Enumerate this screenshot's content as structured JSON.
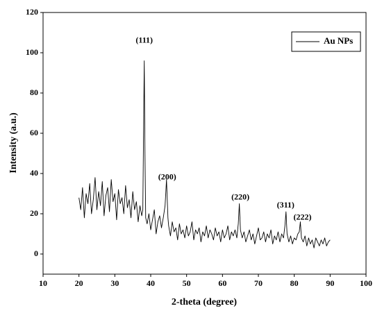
{
  "chart_data": {
    "type": "line",
    "x_label": "2-theta (degree)",
    "y_label": "Intensity (a.u.)",
    "xlim": [
      10,
      100
    ],
    "xticks": [
      10,
      20,
      30,
      40,
      50,
      60,
      70,
      80,
      90,
      100
    ],
    "ylim": [
      -10,
      120
    ],
    "yticks": [
      0,
      20,
      40,
      60,
      80,
      100,
      120
    ],
    "grid": false,
    "legend": "top-right",
    "annotations": [
      {
        "text": "(111)",
        "x": 38.2,
        "y": 106
      },
      {
        "text": "(200)",
        "x": 44.6,
        "y": 38
      },
      {
        "text": "(220)",
        "x": 65,
        "y": 28
      },
      {
        "text": "(311)",
        "x": 77.6,
        "y": 24
      },
      {
        "text": "(222)",
        "x": 82.3,
        "y": 18
      }
    ],
    "series": [
      {
        "name": "Au NPs",
        "color": "#000000",
        "x": [
          20,
          20.5,
          21,
          21.5,
          22,
          22.5,
          23,
          23.5,
          24,
          24.5,
          25,
          25.5,
          26,
          26.5,
          27,
          27.5,
          28,
          28.5,
          29,
          29.5,
          30,
          30.5,
          31,
          31.5,
          32,
          32.5,
          33,
          33.5,
          34,
          34.5,
          35,
          35.5,
          36,
          36.5,
          37,
          37.5,
          37.8,
          38,
          38.2,
          38.4,
          38.6,
          39,
          39.5,
          40,
          40.5,
          41,
          41.5,
          42,
          42.5,
          43,
          43.5,
          44,
          44.4,
          44.8,
          45,
          45.5,
          46,
          46.5,
          47,
          47.5,
          48,
          48.5,
          49,
          49.5,
          50,
          50.5,
          51,
          51.5,
          52,
          52.5,
          53,
          53.5,
          54,
          54.5,
          55,
          55.5,
          56,
          56.5,
          57,
          57.5,
          58,
          58.5,
          59,
          59.5,
          60,
          60.5,
          61,
          61.5,
          62,
          62.5,
          63,
          63.5,
          64,
          64.4,
          64.7,
          65,
          65.5,
          66,
          66.5,
          67,
          67.5,
          68,
          68.5,
          69,
          69.5,
          70,
          70.5,
          71,
          71.5,
          72,
          72.5,
          73,
          73.5,
          74,
          74.5,
          75,
          75.5,
          76,
          76.5,
          77,
          77.4,
          77.7,
          78,
          78.5,
          79,
          79.5,
          80,
          80.5,
          81,
          81.4,
          81.7,
          82,
          82.5,
          83,
          83.5,
          84,
          84.5,
          85,
          85.5,
          86,
          86.5,
          87,
          87.5,
          88,
          88.5,
          89,
          89.5,
          90
        ],
        "values": [
          28,
          22,
          33,
          18,
          30,
          25,
          35,
          20,
          27,
          38,
          22,
          31,
          24,
          36,
          19,
          29,
          33,
          21,
          37,
          26,
          30,
          17,
          32,
          25,
          28,
          20,
          34,
          23,
          27,
          18,
          31,
          22,
          26,
          16,
          24,
          19,
          22,
          60,
          96,
          50,
          18,
          15,
          20,
          12,
          17,
          22,
          10,
          16,
          19,
          13,
          18,
          24,
          37,
          18,
          14,
          9,
          16,
          11,
          13,
          7,
          15,
          10,
          12,
          8,
          14,
          9,
          11,
          16,
          7,
          12,
          10,
          13,
          6,
          11,
          9,
          14,
          8,
          12,
          10,
          7,
          13,
          9,
          11,
          6,
          12,
          8,
          10,
          14,
          7,
          11,
          9,
          12,
          8,
          15,
          25,
          12,
          8,
          11,
          6,
          9,
          12,
          7,
          10,
          5,
          9,
          13,
          7,
          8,
          11,
          6,
          10,
          8,
          12,
          5,
          9,
          7,
          11,
          6,
          10,
          8,
          14,
          21,
          10,
          6,
          9,
          5,
          8,
          7,
          10,
          11,
          16,
          8,
          6,
          9,
          4,
          8,
          5,
          7,
          3,
          8,
          6,
          4,
          7,
          5,
          8,
          4,
          6,
          7
        ]
      }
    ]
  }
}
